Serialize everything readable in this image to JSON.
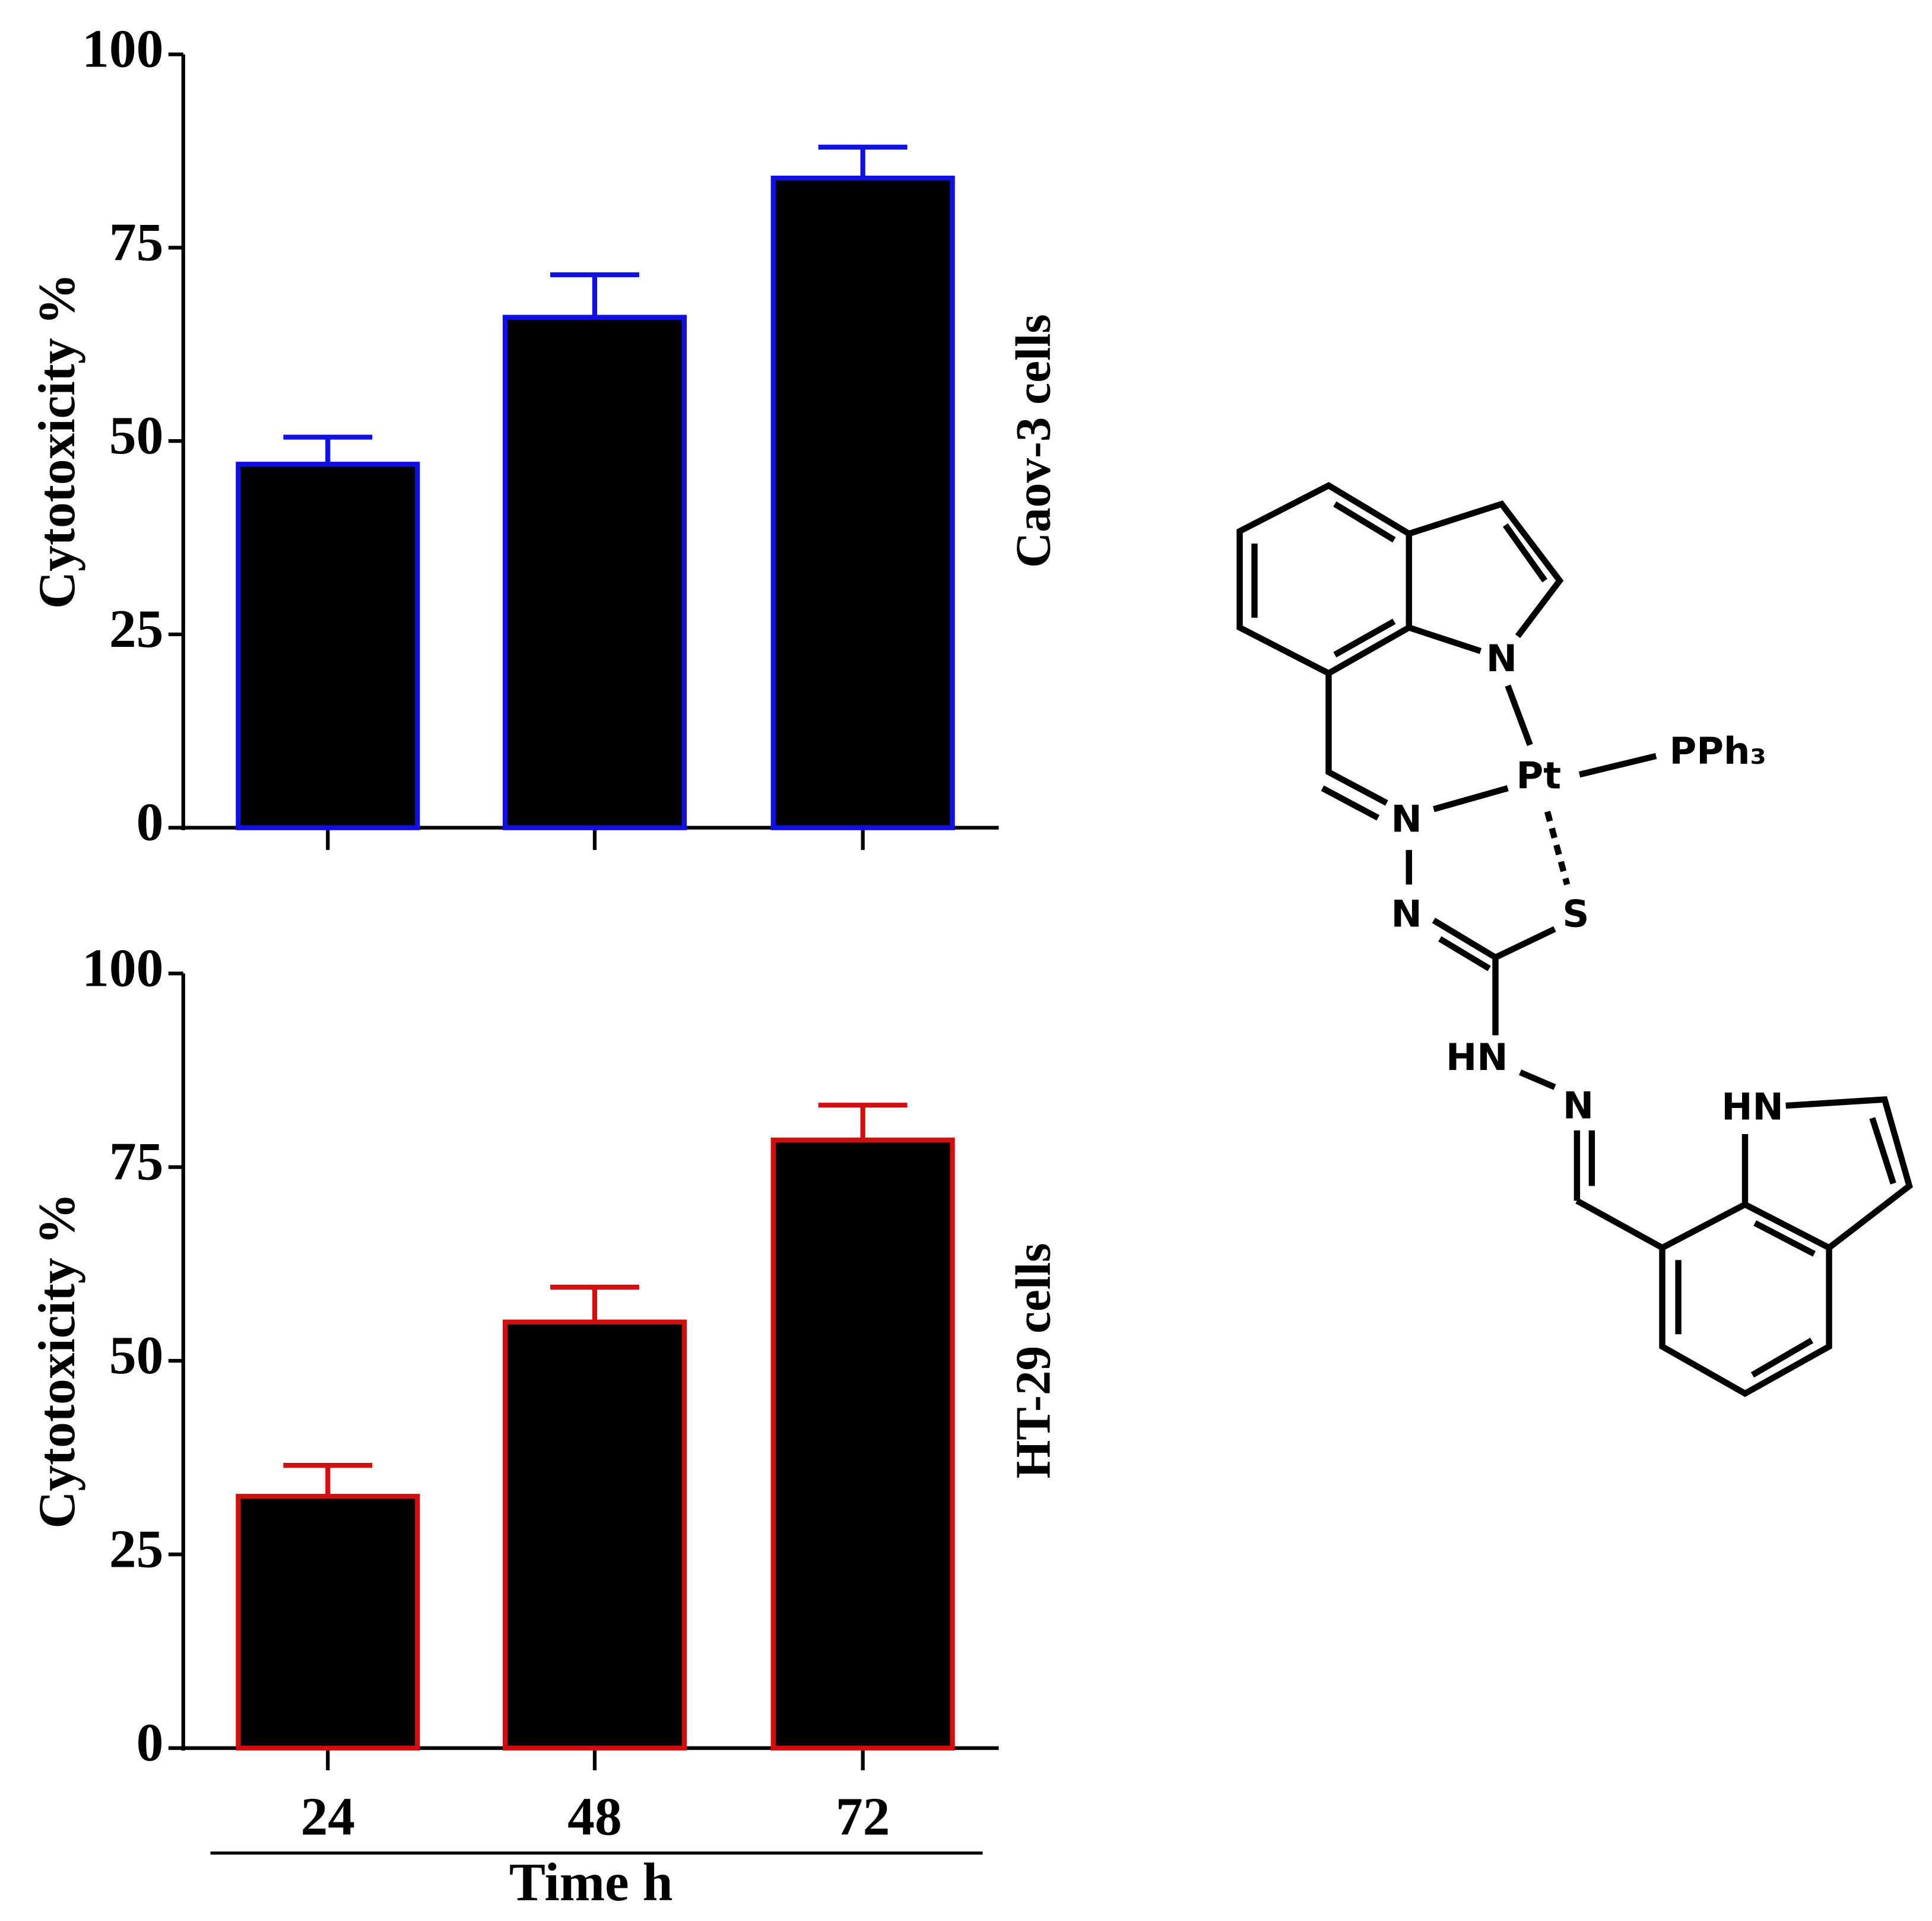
{
  "chart_data": [
    {
      "type": "bar",
      "side_label": "Caov-3 cells",
      "y_label": "Cytotoxicity %",
      "categories": [
        null,
        null,
        null
      ],
      "values": [
        47,
        66,
        84
      ],
      "errors": [
        3.5,
        5.5,
        4
      ],
      "color": "#000000",
      "edge_color": "#1010e0",
      "ylim": [
        0,
        100
      ],
      "yticks": [
        0,
        25,
        50,
        75,
        100
      ]
    },
    {
      "type": "bar",
      "side_label": "HT-29 cells",
      "y_label": "Cytotoxicity %",
      "x_label": "Time h",
      "categories": [
        "24",
        "48",
        "72"
      ],
      "values": [
        32.5,
        55,
        78.5
      ],
      "errors": [
        4,
        4.5,
        4.5
      ],
      "color": "#000000",
      "edge_color": "#d01010",
      "ylim": [
        0,
        100
      ],
      "yticks": [
        0,
        25,
        50,
        75,
        100
      ]
    }
  ],
  "structure": {
    "labels": [
      "N",
      "Pt",
      "PPh₃",
      "N",
      "N",
      "S",
      "HN",
      "N",
      "HN"
    ]
  }
}
